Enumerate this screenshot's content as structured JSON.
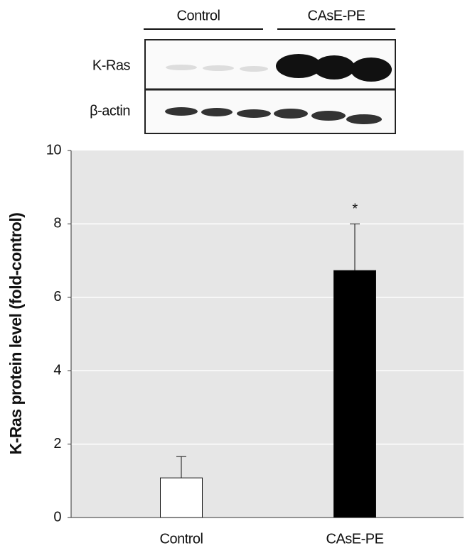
{
  "blot": {
    "groups": [
      "Control",
      "CAsE-PE"
    ],
    "rows": [
      "K-Ras",
      "β-actin"
    ]
  },
  "chart_data": {
    "type": "bar",
    "ylabel": "K-Ras protein level (fold-control)",
    "categories": [
      "Control",
      "CAsE-PE"
    ],
    "values": [
      1.08,
      6.73
    ],
    "errors": [
      0.58,
      1.27
    ],
    "colors": [
      "#ffffff",
      "#000000"
    ],
    "significance_marks": [
      null,
      "*"
    ],
    "ylim": [
      0,
      10
    ],
    "yticks": [
      0,
      2,
      4,
      6,
      8,
      10
    ],
    "grid": true
  }
}
